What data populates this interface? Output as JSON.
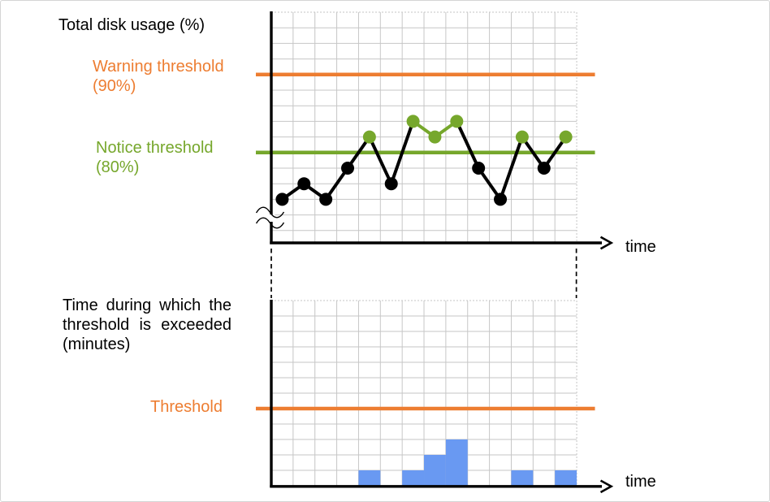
{
  "labels": {
    "top_title": "Total disk usage (%)",
    "warning_line1": "Warning threshold",
    "warning_line2": "(90%)",
    "notice_line1": "Notice threshold",
    "notice_line2": "(80%)",
    "time_top": "time",
    "bottom_title_line1": "Time during which the",
    "bottom_title_line2": "threshold is exceeded",
    "bottom_title_line3": "(minutes)",
    "threshold": "Threshold",
    "time_bottom": "time"
  },
  "colors": {
    "accent_orange": "#ED7D31",
    "accent_green": "#76A72C",
    "bar_blue": "#6999F2",
    "series_black": "#000000",
    "grid_gray": "#C6C6C6",
    "axis_black": "#000000"
  },
  "chart_data": [
    {
      "type": "line",
      "title": "Total disk usage (%)",
      "xlabel": "time",
      "ylabel": "Total disk usage (%)",
      "x": [
        1,
        2,
        3,
        4,
        5,
        6,
        7,
        8,
        9,
        10,
        11,
        12,
        13,
        14
      ],
      "values": [
        74,
        76,
        74,
        78,
        82,
        76,
        84,
        82,
        84,
        78,
        74,
        82,
        78,
        82
      ],
      "unit": "percent",
      "grid_step_percent": 2,
      "ylim_shown": [
        68,
        98
      ],
      "axis_break": true,
      "thresholds": [
        {
          "label": "Warning threshold (90%)",
          "value": 90,
          "color": "#ED7D31"
        },
        {
          "label": "Notice threshold (80%)",
          "value": 80,
          "color": "#76A72C"
        }
      ],
      "point_rule": "points above the 80% notice threshold are green, and segments joining two green points are green; all other points and segments are black"
    },
    {
      "type": "bar",
      "title": "Time during which the threshold is exceeded (minutes)",
      "xlabel": "time",
      "x": [
        1,
        2,
        3,
        4,
        5,
        6,
        7,
        8,
        9,
        10,
        11,
        12,
        13,
        14
      ],
      "values": [
        0,
        0,
        0,
        0,
        1,
        0,
        1,
        2,
        3,
        0,
        0,
        1,
        0,
        1
      ],
      "unit": "grid cells (minutes, unlabeled scale)",
      "bar_color": "#6999F2",
      "threshold": {
        "label": "Threshold",
        "value": 5,
        "color": "#ED7D31"
      },
      "grid_rows": 12
    }
  ]
}
